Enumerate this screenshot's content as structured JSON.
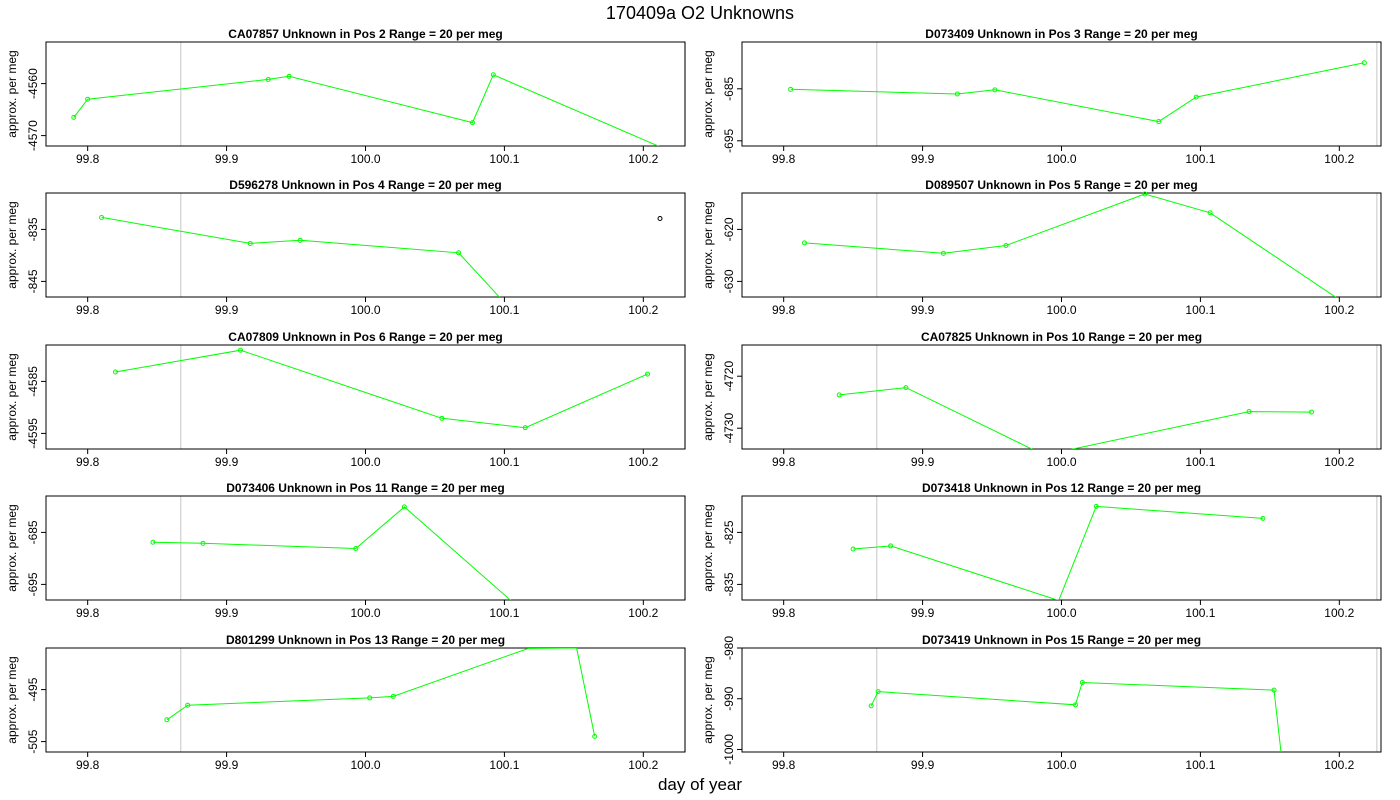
{
  "title": "170409a  O2 Unknowns",
  "xlabel": "day of year",
  "colors": {
    "series": "#00ff00",
    "vline": "#d3d3d3",
    "frame": "#000000"
  },
  "chart_data": [
    {
      "type": "line",
      "title": "CA07857    Unknown in Pos 2         Range = 20 per meg",
      "ylabel": "approx. per meg",
      "xlim": [
        99.77,
        100.23
      ],
      "ylim": [
        -4572,
        -4552
      ],
      "xticks": [
        99.8,
        99.9,
        100.0,
        100.1,
        100.2
      ],
      "yticks": [
        -4560,
        -4570
      ],
      "vlines": [
        99.867,
        100.23
      ],
      "x": [
        99.79,
        99.8,
        99.93,
        99.945,
        100.077,
        100.092,
        100.215
      ],
      "y": [
        -4566.5,
        -4563,
        -4559.2,
        -4558.6,
        -4567.5,
        -4558.3,
        -4572.5
      ],
      "points": [
        1,
        1,
        1,
        1,
        1,
        1,
        0
      ]
    },
    {
      "type": "line",
      "title": "D073409    Unknown in Pos 3         Range = 20 per meg",
      "ylabel": "approx. per meg",
      "xlim": [
        99.77,
        100.23
      ],
      "ylim": [
        -696,
        -676
      ],
      "xticks": [
        99.8,
        99.9,
        100.0,
        100.1,
        100.2
      ],
      "yticks": [
        -685,
        -695
      ],
      "vlines": [
        99.867,
        100.227
      ],
      "x": [
        99.805,
        99.925,
        99.952,
        100.07,
        100.097,
        100.218
      ],
      "y": [
        -685.1,
        -686.0,
        -685.2,
        -691.3,
        -686.6,
        -680.0
      ],
      "points": [
        1,
        1,
        1,
        1,
        1,
        1
      ]
    },
    {
      "type": "line",
      "title": "D596278    Unknown in Pos 4         Range = 20 per meg",
      "ylabel": "approx. per meg",
      "xlim": [
        99.77,
        100.23
      ],
      "ylim": [
        -848,
        -828
      ],
      "xticks": [
        99.8,
        99.9,
        100.0,
        100.1,
        100.2
      ],
      "yticks": [
        -835,
        -845
      ],
      "vlines": [
        99.867,
        100.23
      ],
      "x": [
        99.81,
        99.917,
        99.953,
        100.067,
        100.097
      ],
      "y": [
        -832.7,
        -837.7,
        -837.1,
        -839.5,
        -848.2
      ],
      "points": [
        1,
        1,
        1,
        1,
        0
      ],
      "extra_point": {
        "x": 100.212,
        "y": -832.9
      }
    },
    {
      "type": "line",
      "title": "D089507    Unknown in Pos 5         Range = 20 per meg",
      "ylabel": "approx. per meg",
      "xlim": [
        99.77,
        100.23
      ],
      "ylim": [
        -633,
        -613
      ],
      "xticks": [
        99.8,
        99.9,
        100.0,
        100.1,
        100.2
      ],
      "yticks": [
        -620,
        -630
      ],
      "vlines": [
        99.867,
        100.227
      ],
      "x": [
        99.815,
        99.915,
        99.96,
        100.06,
        100.107,
        100.2
      ],
      "y": [
        -622.6,
        -624.6,
        -623.1,
        -613.2,
        -616.8,
        -633.5
      ],
      "points": [
        1,
        1,
        1,
        1,
        1,
        0
      ]
    },
    {
      "type": "line",
      "title": "CA07809    Unknown in Pos 6         Range = 20 per meg",
      "ylabel": "approx. per meg",
      "xlim": [
        99.77,
        100.23
      ],
      "ylim": [
        -4598,
        -4578
      ],
      "xticks": [
        99.8,
        99.9,
        100.0,
        100.1,
        100.2
      ],
      "yticks": [
        -4585,
        -4595
      ],
      "vlines": [
        99.867,
        100.23
      ],
      "x": [
        99.82,
        99.91,
        100.055,
        100.115,
        100.203
      ],
      "y": [
        -4583.2,
        -4579.0,
        -4592.1,
        -4593.9,
        -4583.6
      ],
      "points": [
        1,
        1,
        1,
        1,
        1
      ]
    },
    {
      "type": "line",
      "title": "CA07825    Unknown in Pos 10         Range = 20 per meg",
      "ylabel": "approx. per meg",
      "xlim": [
        99.77,
        100.23
      ],
      "ylim": [
        -4734,
        -4714
      ],
      "xticks": [
        99.8,
        99.9,
        100.0,
        100.1,
        100.2
      ],
      "yticks": [
        -4720,
        -4730
      ],
      "vlines": [
        99.867,
        100.227
      ],
      "x": [
        99.84,
        99.888,
        99.98,
        100.005,
        100.135,
        100.18
      ],
      "y": [
        -4723.6,
        -4722.2,
        -4734.2,
        -4734.2,
        -4726.8,
        -4726.9
      ],
      "points": [
        1,
        1,
        0,
        0,
        1,
        1
      ]
    },
    {
      "type": "line",
      "title": "D073406    Unknown in Pos 11         Range = 20 per meg",
      "ylabel": "approx. per meg",
      "xlim": [
        99.77,
        100.23
      ],
      "ylim": [
        -698,
        -678
      ],
      "xticks": [
        99.8,
        99.9,
        100.0,
        100.1,
        100.2
      ],
      "yticks": [
        -685,
        -695
      ],
      "vlines": [
        99.867,
        100.23
      ],
      "x": [
        99.847,
        99.883,
        99.993,
        100.028,
        100.105
      ],
      "y": [
        -686.9,
        -687.1,
        -688.1,
        -680.1,
        -698.2
      ],
      "points": [
        1,
        1,
        1,
        1,
        0
      ]
    },
    {
      "type": "line",
      "title": "D073418    Unknown in Pos 12         Range = 20 per meg",
      "ylabel": "approx. per meg",
      "xlim": [
        99.77,
        100.23
      ],
      "ylim": [
        -838,
        -818
      ],
      "xticks": [
        99.8,
        99.9,
        100.0,
        100.1,
        100.2
      ],
      "yticks": [
        -825,
        -835
      ],
      "vlines": [
        99.867,
        100.227
      ],
      "x": [
        99.85,
        99.877,
        99.998,
        100.025,
        100.145
      ],
      "y": [
        -828.2,
        -827.6,
        -838.1,
        -820.0,
        -822.3
      ],
      "points": [
        1,
        1,
        0,
        1,
        1
      ]
    },
    {
      "type": "line",
      "title": "D801299    Unknown in Pos 13         Range = 20 per meg",
      "ylabel": "approx. per meg",
      "xlim": [
        99.77,
        100.23
      ],
      "ylim": [
        -507,
        -487
      ],
      "xticks": [
        99.8,
        99.9,
        100.0,
        100.1,
        100.2
      ],
      "yticks": [
        -495,
        -505
      ],
      "vlines": [
        99.867,
        100.23
      ],
      "x": [
        99.857,
        99.872,
        100.003,
        100.02,
        100.117,
        100.152,
        100.165
      ],
      "y": [
        -500.8,
        -498.0,
        -496.6,
        -496.3,
        -487.1,
        -487.0,
        -504.0
      ],
      "points": [
        1,
        1,
        1,
        1,
        0,
        0,
        1
      ]
    },
    {
      "type": "line",
      "title": "D073419    Unknown in Pos 15         Range = 20 per meg",
      "ylabel": "approx. per meg",
      "xlim": [
        99.77,
        100.23
      ],
      "ylim": [
        -1000.5,
        -980
      ],
      "xticks": [
        99.8,
        99.9,
        100.0,
        100.1,
        100.2
      ],
      "yticks": [
        -980,
        -990,
        -1000
      ],
      "vlines": [
        99.867,
        100.227
      ],
      "x": [
        99.863,
        99.868,
        100.01,
        100.015,
        100.153,
        100.158
      ],
      "y": [
        -991.4,
        -988.6,
        -991.2,
        -986.8,
        -988.3,
        -1000.5
      ],
      "points": [
        1,
        1,
        1,
        1,
        1,
        0
      ]
    }
  ]
}
